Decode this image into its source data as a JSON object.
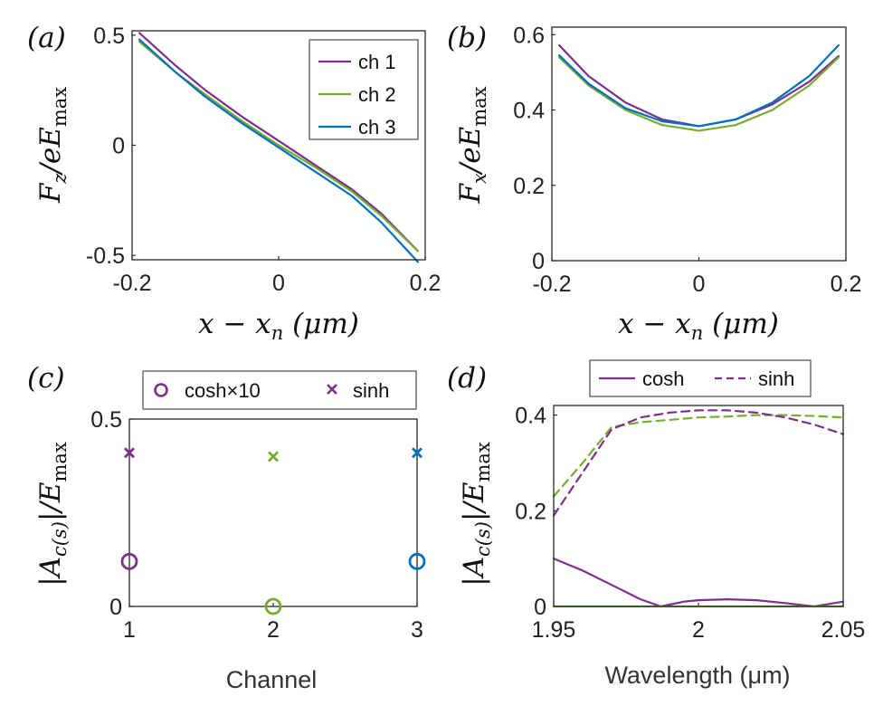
{
  "colors": {
    "ch1": "#7E2F8E",
    "ch2": "#77AC30",
    "ch3": "#0072BD",
    "axis": "#262626"
  },
  "chart_data": [
    {
      "id": "a",
      "panel_label": "(a)",
      "type": "line",
      "ylabel": {
        "main": "F",
        "sub": "z",
        "den": "/eE",
        "den_sub": "max"
      },
      "xlabel": {
        "main": "x − x",
        "sub": "n",
        "unit": " (μm)"
      },
      "xlim": [
        -0.2,
        0.2
      ],
      "ylim": [
        -0.52,
        0.52
      ],
      "xticks": [
        -0.2,
        0,
        0.2
      ],
      "xtick_labels": [
        "-0.2",
        "0",
        "0.2"
      ],
      "yticks": [
        -0.5,
        0,
        0.5
      ],
      "ytick_labels": [
        "-0.5",
        "0",
        "0.5"
      ],
      "legend": {
        "position": "top-right",
        "entries": [
          "ch 1",
          "ch 2",
          "ch 3"
        ]
      },
      "series": [
        {
          "name": "ch 1",
          "color": "#7E2F8E",
          "x": [
            -0.19,
            -0.14,
            -0.1,
            -0.05,
            0,
            0.05,
            0.1,
            0.14,
            0.19
          ],
          "y": [
            0.51,
            0.36,
            0.25,
            0.13,
            0.02,
            -0.09,
            -0.2,
            -0.31,
            -0.48
          ]
        },
        {
          "name": "ch 2",
          "color": "#77AC30",
          "x": [
            -0.19,
            -0.14,
            -0.1,
            -0.05,
            0,
            0.05,
            0.1,
            0.14,
            0.19
          ],
          "y": [
            0.47,
            0.33,
            0.23,
            0.11,
            0.0,
            -0.1,
            -0.21,
            -0.32,
            -0.48
          ]
        },
        {
          "name": "ch 3",
          "color": "#0072BD",
          "x": [
            -0.19,
            -0.14,
            -0.1,
            -0.05,
            0,
            0.05,
            0.1,
            0.14,
            0.19
          ],
          "y": [
            0.48,
            0.33,
            0.22,
            0.1,
            -0.01,
            -0.12,
            -0.23,
            -0.35,
            -0.53
          ]
        }
      ]
    },
    {
      "id": "b",
      "panel_label": "(b)",
      "type": "line",
      "ylabel": {
        "main": "F",
        "sub": "x",
        "den": "/eE",
        "den_sub": "max"
      },
      "xlabel": {
        "main": "x − x",
        "sub": "n",
        "unit": " (μm)"
      },
      "xlim": [
        -0.2,
        0.2
      ],
      "ylim": [
        0,
        0.62
      ],
      "xticks": [
        -0.2,
        0,
        0.2
      ],
      "xtick_labels": [
        "-0.2",
        "0",
        "0.2"
      ],
      "yticks": [
        0,
        0.2,
        0.4,
        0.6
      ],
      "ytick_labels": [
        "0",
        "0.2",
        "0.4",
        "0.6"
      ],
      "series": [
        {
          "name": "ch 1",
          "color": "#7E2F8E",
          "x": [
            -0.19,
            -0.15,
            -0.1,
            -0.05,
            0,
            0.05,
            0.1,
            0.15,
            0.19
          ],
          "y": [
            0.572,
            0.49,
            0.42,
            0.375,
            0.357,
            0.375,
            0.415,
            0.475,
            0.543
          ]
        },
        {
          "name": "ch 2",
          "color": "#77AC30",
          "x": [
            -0.19,
            -0.15,
            -0.1,
            -0.05,
            0,
            0.05,
            0.1,
            0.15,
            0.19
          ],
          "y": [
            0.54,
            0.465,
            0.4,
            0.36,
            0.345,
            0.36,
            0.4,
            0.465,
            0.54
          ]
        },
        {
          "name": "ch 3",
          "color": "#0072BD",
          "x": [
            -0.19,
            -0.15,
            -0.1,
            -0.05,
            0,
            0.05,
            0.1,
            0.15,
            0.19
          ],
          "y": [
            0.545,
            0.47,
            0.405,
            0.37,
            0.357,
            0.375,
            0.42,
            0.49,
            0.572
          ]
        }
      ]
    },
    {
      "id": "c",
      "panel_label": "(c)",
      "type": "scatter",
      "ylabel": {
        "main": "|A",
        "sub": "c(s)",
        "den": "|/E",
        "den_sub": "max"
      },
      "xlabel": {
        "text": "Channel"
      },
      "xlim": [
        1,
        3
      ],
      "ylim": [
        0,
        0.5
      ],
      "xticks": [
        1,
        2,
        3
      ],
      "xtick_labels": [
        "1",
        "2",
        "3"
      ],
      "yticks": [
        0,
        0.5
      ],
      "ytick_labels": [
        "0",
        "0.5"
      ],
      "legend": {
        "position": "top-outside",
        "entries": [
          "cosh×10",
          "sinh"
        ]
      },
      "series": [
        {
          "name": "cosh×10",
          "marker": "circle",
          "x": [
            1,
            2,
            3
          ],
          "y": [
            0.12,
            0.0,
            0.12
          ],
          "colors": [
            "#7E2F8E",
            "#77AC30",
            "#0072BD"
          ]
        },
        {
          "name": "sinh",
          "marker": "x",
          "x": [
            1,
            2,
            3
          ],
          "y": [
            0.41,
            0.4,
            0.41
          ],
          "colors": [
            "#7E2F8E",
            "#77AC30",
            "#0072BD"
          ]
        }
      ]
    },
    {
      "id": "d",
      "panel_label": "(d)",
      "type": "line",
      "ylabel": {
        "main": "|A",
        "sub": "c(s)",
        "den": "|/E",
        "den_sub": "max"
      },
      "xlabel": {
        "text": "Wavelength (μm)"
      },
      "xlim": [
        1.95,
        2.05
      ],
      "ylim": [
        0,
        0.42
      ],
      "xticks": [
        1.95,
        2,
        2.05
      ],
      "xtick_labels": [
        "1.95",
        "2",
        "2.05"
      ],
      "yticks": [
        0,
        0.2,
        0.4
      ],
      "ytick_labels": [
        "0",
        "0.2",
        "0.4"
      ],
      "legend": {
        "position": "top-outside",
        "entries": [
          "cosh",
          "sinh"
        ]
      },
      "series": [
        {
          "name": "cosh (ch 1)",
          "color": "#7E2F8E",
          "dash": false,
          "x": [
            1.95,
            1.96,
            1.97,
            1.98,
            1.987,
            1.995,
            2.0,
            2.01,
            2.02,
            2.03,
            2.04,
            2.05
          ],
          "y": [
            0.1,
            0.075,
            0.045,
            0.015,
            0.0,
            0.01,
            0.013,
            0.015,
            0.013,
            0.007,
            0.0,
            0.01
          ]
        },
        {
          "name": "cosh (ch 2)",
          "color": "#77AC30",
          "dash": false,
          "x": [
            1.95,
            2.05
          ],
          "y": [
            0.0,
            0.0
          ]
        },
        {
          "name": "sinh (ch 2)",
          "color": "#77AC30",
          "dash": true,
          "x": [
            1.95,
            1.96,
            1.97,
            1.98,
            1.99,
            2.0,
            2.01,
            2.02,
            2.03,
            2.04,
            2.05
          ],
          "y": [
            0.23,
            0.3,
            0.375,
            0.385,
            0.39,
            0.395,
            0.397,
            0.4,
            0.4,
            0.398,
            0.395
          ]
        },
        {
          "name": "sinh (ch 1)",
          "color": "#7E2F8E",
          "dash": true,
          "x": [
            1.95,
            1.96,
            1.97,
            1.98,
            1.99,
            2.0,
            2.01,
            2.02,
            2.03,
            2.04,
            2.05
          ],
          "y": [
            0.19,
            0.28,
            0.37,
            0.395,
            0.405,
            0.41,
            0.41,
            0.405,
            0.395,
            0.38,
            0.36
          ]
        }
      ]
    }
  ]
}
